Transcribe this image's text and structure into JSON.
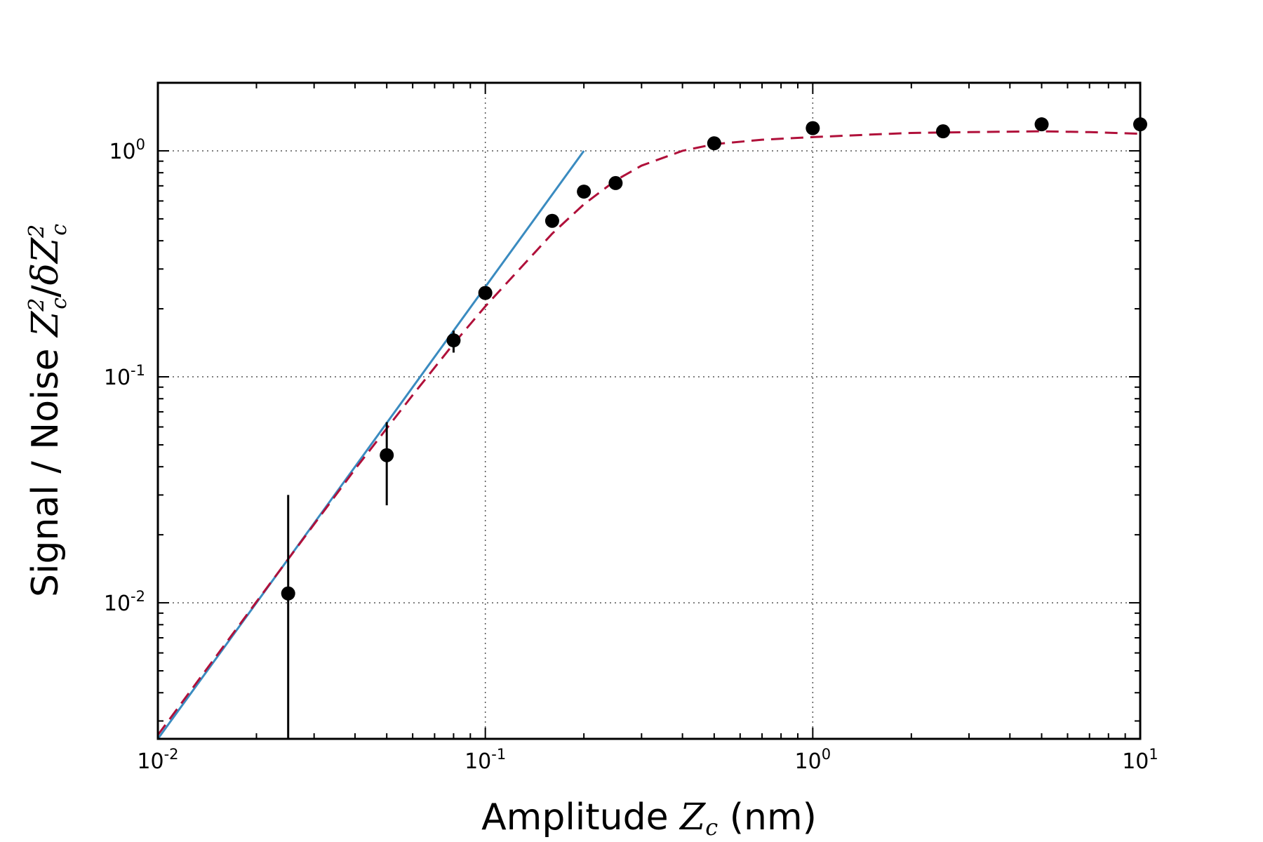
{
  "chart_data": {
    "type": "scatter",
    "title": "",
    "xlabel": {
      "prefix": "Amplitude ",
      "var": "Z",
      "sub": "c",
      "suffix": " (nm)"
    },
    "ylabel": {
      "prefix": "Signal / Noise ",
      "num_var": "Z",
      "num_sub": "c",
      "num_sup": "2",
      "slash": "/",
      "den_delta": "δ",
      "den_var": "Z",
      "den_sub": "c",
      "den_sup": "2"
    },
    "xscale": "log",
    "yscale": "log",
    "xlim": [
      0.01,
      10
    ],
    "ylim": [
      0.0025,
      2.0
    ],
    "grid": true,
    "xticks": [
      {
        "value": 0.01,
        "base": "10",
        "exp": "-2"
      },
      {
        "value": 0.1,
        "base": "10",
        "exp": "-1"
      },
      {
        "value": 1,
        "base": "10",
        "exp": "0"
      },
      {
        "value": 10,
        "base": "10",
        "exp": "1"
      }
    ],
    "yticks": [
      {
        "value": 0.01,
        "base": "10",
        "exp": "-2"
      },
      {
        "value": 0.1,
        "base": "10",
        "exp": "-1"
      },
      {
        "value": 1,
        "base": "10",
        "exp": "0"
      }
    ],
    "series": [
      {
        "kind": "points_with_errorbars",
        "color": "#000000",
        "x": [
          0.025,
          0.05,
          0.08,
          0.1,
          0.16,
          0.2,
          0.25,
          0.5,
          1.0,
          2.5,
          5.0,
          10.0
        ],
        "y": [
          0.011,
          0.045,
          0.145,
          0.235,
          0.49,
          0.66,
          0.72,
          1.08,
          1.26,
          1.22,
          1.31,
          1.31
        ],
        "yerr_low": [
          0.0025,
          0.027,
          0.128,
          0.23,
          0.485,
          0.655,
          0.715,
          1.075,
          1.255,
          1.215,
          1.305,
          1.305
        ],
        "yerr_high": [
          0.03,
          0.063,
          0.16,
          0.24,
          0.495,
          0.665,
          0.725,
          1.085,
          1.265,
          1.225,
          1.315,
          1.315
        ]
      },
      {
        "kind": "line",
        "style": "solid",
        "color": "#3a8bc0",
        "x": [
          0.01,
          0.2
        ],
        "y": [
          0.0025,
          1.0
        ]
      },
      {
        "kind": "line",
        "style": "dashed",
        "color": "#b0103a",
        "x": [
          0.01,
          0.02,
          0.04,
          0.06,
          0.08,
          0.1,
          0.13,
          0.16,
          0.2,
          0.25,
          0.3,
          0.4,
          0.5,
          0.7,
          1.0,
          1.5,
          2.0,
          3.0,
          5.0,
          7.0,
          10.0
        ],
        "y": [
          0.0026,
          0.0101,
          0.039,
          0.083,
          0.14,
          0.205,
          0.31,
          0.43,
          0.58,
          0.74,
          0.86,
          1.0,
          1.07,
          1.12,
          1.15,
          1.18,
          1.2,
          1.21,
          1.22,
          1.21,
          1.19
        ]
      }
    ]
  }
}
